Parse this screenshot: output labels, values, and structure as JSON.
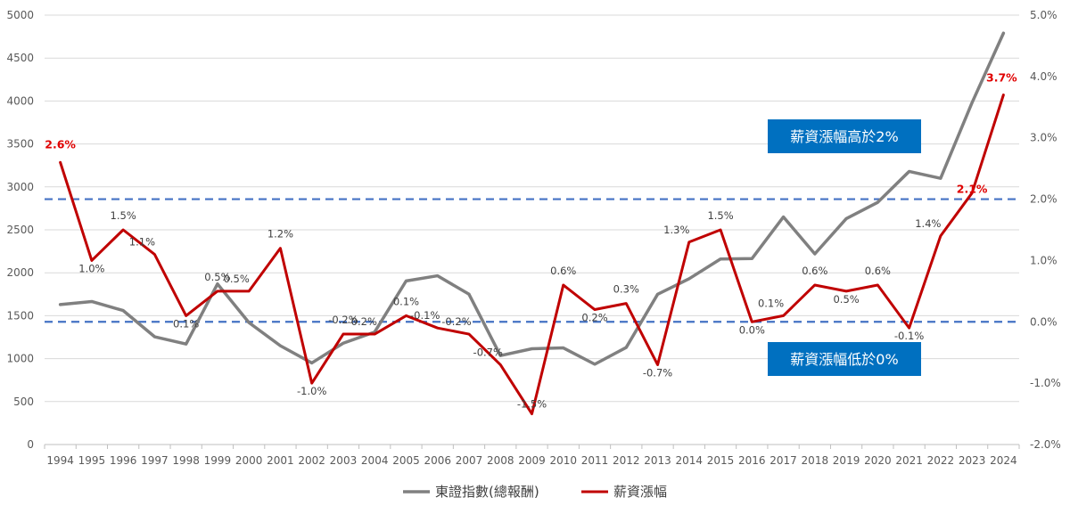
{
  "chart_data": {
    "type": "line",
    "categories": [
      "1994",
      "1995",
      "1996",
      "1997",
      "1998",
      "1999",
      "2000",
      "2001",
      "2002",
      "2003",
      "2004",
      "2005",
      "2006",
      "2007",
      "2008",
      "2009",
      "2010",
      "2011",
      "2012",
      "2013",
      "2014",
      "2015",
      "2016",
      "2017",
      "2018",
      "2019",
      "2020",
      "2021",
      "2022",
      "2023",
      "2024"
    ],
    "series": [
      {
        "name": "東證指數(總報酬)",
        "axis": "left",
        "color": "#808080",
        "values": [
          1630,
          1665,
          1560,
          1255,
          1170,
          1870,
          1420,
          1150,
          950,
          1180,
          1310,
          1905,
          1965,
          1750,
          1035,
          1115,
          1125,
          935,
          1130,
          1750,
          1930,
          2160,
          2165,
          2650,
          2220,
          2630,
          2820,
          3180,
          3100,
          3980,
          4790
        ]
      },
      {
        "name": "薪資漲幅",
        "axis": "right",
        "color": "#c00000",
        "values": [
          2.6,
          1.0,
          1.5,
          1.1,
          0.1,
          0.5,
          0.5,
          1.2,
          -1.0,
          -0.2,
          -0.2,
          0.1,
          -0.1,
          -0.2,
          -0.7,
          -1.5,
          0.6,
          0.2,
          0.3,
          -0.7,
          1.3,
          1.5,
          0.0,
          0.1,
          0.6,
          0.5,
          0.6,
          -0.1,
          1.4,
          2.1,
          3.7
        ],
        "labels": [
          "2.6%",
          "1.0%",
          "1.5%",
          "1.1%",
          "0.1%",
          "0.5%",
          "0.5%",
          "1.2%",
          "-1.0%",
          "-0.2%",
          "-0.2%",
          "0.1%",
          "-0.1%",
          "-0.2%",
          "-0.7%",
          "-1.5%",
          "0.6%",
          "0.2%",
          "0.3%",
          "-0.7%",
          "1.3%",
          "1.5%",
          "0.0%",
          "0.1%",
          "0.6%",
          "0.5%",
          "0.6%",
          "-0.1%",
          "1.4%",
          "2.1%",
          "3.7%"
        ],
        "highlight": [
          0,
          29,
          30
        ]
      }
    ],
    "y_left": {
      "min": 0,
      "max": 5000,
      "ticks": [
        "0",
        "500",
        "1000",
        "1500",
        "2000",
        "2500",
        "3000",
        "3500",
        "4000",
        "4500",
        "5000"
      ]
    },
    "y_right": {
      "min": -2.0,
      "max": 5.0,
      "ticks": [
        "-2.0%",
        "-1.0%",
        "0.0%",
        "1.0%",
        "2.0%",
        "3.0%",
        "4.0%",
        "5.0%"
      ]
    },
    "reference_lines": [
      {
        "value": 2.0,
        "axis": "right",
        "color": "#4472c4",
        "style": "dashed",
        "label": "薪資漲幅高於2%"
      },
      {
        "value": 0.0,
        "axis": "right",
        "color": "#4472c4",
        "style": "dashed",
        "label": "薪資漲幅低於0%"
      }
    ],
    "box_color": "#0070c0",
    "highlight_color": "#e00000",
    "grid": true,
    "legend_position": "bottom"
  }
}
